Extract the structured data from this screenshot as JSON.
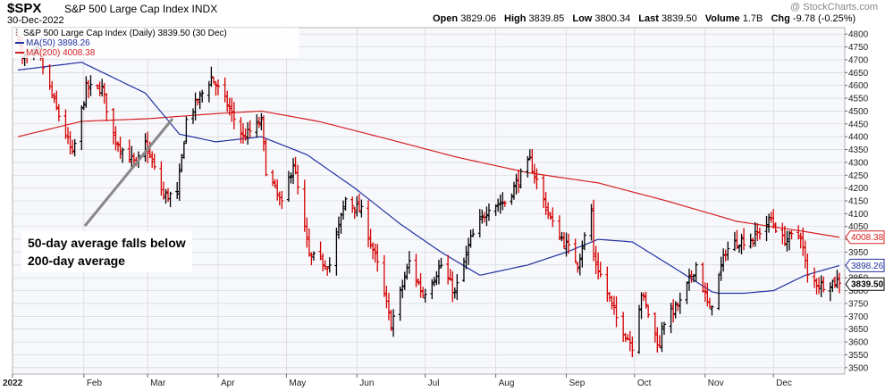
{
  "header": {
    "symbol": "$SPX",
    "symbol_name": "S&P 500 Large Cap Index INDX",
    "date": "30-Dec-2022",
    "watermark": "@ StockCharts.com",
    "ohlc": {
      "open_label": "Open",
      "open": "3829.06",
      "high_label": "High",
      "high": "3839.85",
      "low_label": "Low",
      "low": "3800.34",
      "last_label": "Last",
      "last": "3839.50",
      "volume_label": "Volume",
      "volume": "1.7B",
      "chg_label": "Chg",
      "chg": "-9.78 (-0.25%)"
    }
  },
  "legend": {
    "main": "S&P 500 Large Cap Index (Daily) 3839.50 (30 Dec)",
    "ma50": "MA(50) 3898.26",
    "ma200": "MA(200) 4008.38"
  },
  "annotation": {
    "line1": "50-day average falls below",
    "line2": "200-day average"
  },
  "colors": {
    "up": "#000000",
    "down": "#d40000",
    "ma50": "#2030a0",
    "ma200": "#d42020",
    "grid": "#d0d0d0",
    "plot_bg": "#f7f8fc"
  },
  "chart_data": {
    "type": "ohlc",
    "title": "S&P 500 Large Cap Index (Daily)",
    "x_axis": {
      "type": "date",
      "start": "2022-01-03",
      "end": "2022-12-30",
      "month_labels": [
        "2022",
        "Feb",
        "Mar",
        "Apr",
        "May",
        "Jun",
        "Jul",
        "Aug",
        "Sep",
        "Oct",
        "Nov",
        "Dec"
      ]
    },
    "y_axis": {
      "position": "right",
      "min": 3475,
      "max": 4825,
      "ticks": [
        3500,
        3550,
        3600,
        3650,
        3700,
        3750,
        3800,
        3850,
        3900,
        3950,
        4000,
        4050,
        4100,
        4150,
        4200,
        4250,
        4300,
        4350,
        4400,
        4450,
        4500,
        4550,
        4600,
        4650,
        4700,
        4750,
        4800
      ]
    },
    "grid": true,
    "close_anchors": [
      [
        "2022-01-03",
        4797
      ],
      [
        "2022-01-05",
        4700
      ],
      [
        "2022-01-12",
        4726
      ],
      [
        "2022-01-19",
        4532
      ],
      [
        "2022-01-24",
        4410
      ],
      [
        "2022-01-27",
        4327
      ],
      [
        "2022-02-02",
        4589
      ],
      [
        "2022-02-09",
        4587
      ],
      [
        "2022-02-14",
        4401
      ],
      [
        "2022-02-18",
        4349
      ],
      [
        "2022-02-24",
        4289
      ],
      [
        "2022-02-28",
        4374
      ],
      [
        "2022-03-08",
        4170
      ],
      [
        "2022-03-14",
        4173
      ],
      [
        "2022-03-18",
        4463
      ],
      [
        "2022-03-29",
        4631
      ],
      [
        "2022-04-05",
        4525
      ],
      [
        "2022-04-12",
        4397
      ],
      [
        "2022-04-20",
        4459
      ],
      [
        "2022-04-22",
        4272
      ],
      [
        "2022-04-29",
        4132
      ],
      [
        "2022-05-04",
        4300
      ],
      [
        "2022-05-11",
        3935
      ],
      [
        "2022-05-20",
        3901
      ],
      [
        "2022-05-27",
        4158
      ],
      [
        "2022-06-03",
        4108
      ],
      [
        "2022-06-10",
        3900
      ],
      [
        "2022-06-16",
        3667
      ],
      [
        "2022-06-24",
        3912
      ],
      [
        "2022-06-30",
        3785
      ],
      [
        "2022-07-08",
        3899
      ],
      [
        "2022-07-14",
        3790
      ],
      [
        "2022-07-21",
        3999
      ],
      [
        "2022-07-29",
        4130
      ],
      [
        "2022-08-05",
        4145
      ],
      [
        "2022-08-16",
        4305
      ],
      [
        "2022-08-23",
        4128
      ],
      [
        "2022-08-26",
        4058
      ],
      [
        "2022-09-06",
        3908
      ],
      [
        "2022-09-12",
        4110
      ],
      [
        "2022-09-13",
        3932
      ],
      [
        "2022-09-23",
        3693
      ],
      [
        "2022-09-30",
        3586
      ],
      [
        "2022-10-04",
        3791
      ],
      [
        "2022-10-12",
        3577
      ],
      [
        "2022-10-13",
        3670
      ],
      [
        "2022-10-21",
        3752
      ],
      [
        "2022-10-28",
        3901
      ],
      [
        "2022-11-03",
        3720
      ],
      [
        "2022-11-10",
        3956
      ],
      [
        "2022-11-15",
        3992
      ],
      [
        "2022-11-22",
        4003
      ],
      [
        "2022-11-30",
        4080
      ],
      [
        "2022-12-05",
        3998
      ],
      [
        "2022-12-13",
        4019
      ],
      [
        "2022-12-16",
        3852
      ],
      [
        "2022-12-22",
        3822
      ],
      [
        "2022-12-30",
        3840
      ]
    ],
    "ma50_anchors": [
      [
        "2022-01-03",
        4660
      ],
      [
        "2022-01-31",
        4690
      ],
      [
        "2022-02-28",
        4570
      ],
      [
        "2022-03-15",
        4410
      ],
      [
        "2022-03-31",
        4380
      ],
      [
        "2022-04-20",
        4400
      ],
      [
        "2022-05-10",
        4330
      ],
      [
        "2022-05-31",
        4200
      ],
      [
        "2022-06-20",
        4060
      ],
      [
        "2022-07-08",
        3950
      ],
      [
        "2022-07-25",
        3860
      ],
      [
        "2022-08-15",
        3900
      ],
      [
        "2022-09-01",
        3950
      ],
      [
        "2022-09-15",
        4000
      ],
      [
        "2022-09-30",
        3990
      ],
      [
        "2022-10-20",
        3880
      ],
      [
        "2022-11-05",
        3790
      ],
      [
        "2022-11-18",
        3790
      ],
      [
        "2022-12-01",
        3800
      ],
      [
        "2022-12-15",
        3860
      ],
      [
        "2022-12-30",
        3898
      ]
    ],
    "ma200_anchors": [
      [
        "2022-01-03",
        4400
      ],
      [
        "2022-01-31",
        4460
      ],
      [
        "2022-03-01",
        4470
      ],
      [
        "2022-03-31",
        4490
      ],
      [
        "2022-04-20",
        4500
      ],
      [
        "2022-05-15",
        4460
      ],
      [
        "2022-06-15",
        4390
      ],
      [
        "2022-07-15",
        4320
      ],
      [
        "2022-08-15",
        4260
      ],
      [
        "2022-09-15",
        4220
      ],
      [
        "2022-10-15",
        4150
      ],
      [
        "2022-11-15",
        4070
      ],
      [
        "2022-12-15",
        4030
      ],
      [
        "2022-12-30",
        4008
      ]
    ],
    "price_labels": [
      {
        "text": "4008.38",
        "value": 4008.38,
        "series": "MA(200)"
      },
      {
        "text": "3898.26",
        "value": 3898.26,
        "series": "MA(50)"
      },
      {
        "text": "3839.50",
        "value": 3839.5,
        "series": "Close"
      }
    ]
  }
}
